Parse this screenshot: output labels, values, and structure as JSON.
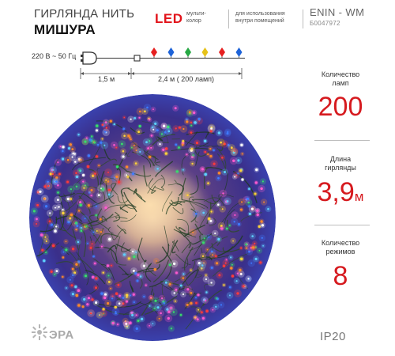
{
  "header": {
    "title_line1": "ГИРЛЯНДА НИТЬ",
    "title_line2": "МИШУРА",
    "led_word": "LED",
    "led_desc_line1": "мульти-",
    "led_desc_line2": "колор",
    "indoor_line1": "для использования",
    "indoor_line2": "внутри помещений",
    "model": "ENIN - WM",
    "sku": "Б0047972"
  },
  "schematic": {
    "voltage": "220 В ~ 50 Гц",
    "cable_length": "1,5 м",
    "garland_length": "2,4  м ( 200 ламп)",
    "bulb_colors": [
      "#e62020",
      "#1e63d8",
      "#27a844",
      "#e6c21a",
      "#e62020",
      "#1e63d8"
    ]
  },
  "stats": {
    "lamps_label_line1": "Количество",
    "lamps_label_line2": "ламп",
    "lamps_value": "200",
    "length_label_line1": "Длина",
    "length_label_line2": "гирлянды",
    "length_value": "3,9",
    "length_unit": "м",
    "modes_label_line1": "Количество",
    "modes_label_line2": "режимов",
    "modes_value": "8",
    "ip_rating": "IP20"
  },
  "brand": {
    "logo_text": "ЭРА"
  },
  "colors": {
    "accent": "#d61a1f",
    "led_red": "#e2141b"
  },
  "icons": {
    "plug": "plug-icon",
    "logo": "era-logo-icon",
    "photo": "garland-wreath-photo"
  }
}
